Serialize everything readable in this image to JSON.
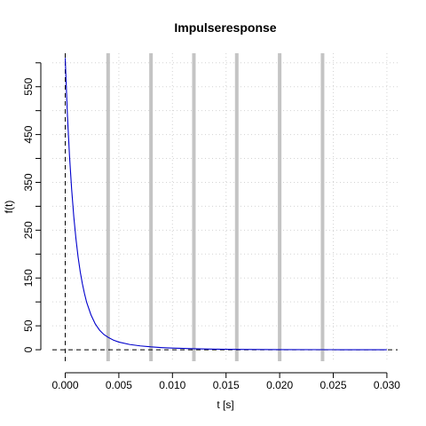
{
  "chart_data": {
    "type": "line",
    "title": "Impulseresponse",
    "xlabel": "t [s]",
    "ylabel": "f(t)",
    "xlim": [
      -0.0012,
      0.031
    ],
    "ylim": [
      -24,
      620
    ],
    "x_ticks": [
      0.0,
      0.005,
      0.01,
      0.015,
      0.02,
      0.025,
      0.03
    ],
    "x_tick_labels": [
      "0.000",
      "0.005",
      "0.010",
      "0.015",
      "0.020",
      "0.025",
      "0.030"
    ],
    "y_ticks_minor": [
      0,
      50,
      100,
      150,
      200,
      250,
      300,
      350,
      400,
      450,
      500,
      550,
      600
    ],
    "y_tick_labels": [
      {
        "value": 0,
        "label": "0"
      },
      {
        "value": 50,
        "label": "50"
      },
      {
        "value": 150,
        "label": "150"
      },
      {
        "value": 250,
        "label": "250"
      },
      {
        "value": 350,
        "label": "350"
      },
      {
        "value": 450,
        "label": "450"
      },
      {
        "value": 550,
        "label": "550"
      }
    ],
    "grid": true,
    "vertical_markers": [
      0.004,
      0.008,
      0.012,
      0.016,
      0.02,
      0.024
    ],
    "reference_lines": {
      "x": 0,
      "y": 0
    },
    "series": [
      {
        "color": "#0000cc",
        "x": [
          0.0,
          0.0002,
          0.0004,
          0.0006,
          0.0008,
          0.001,
          0.0012,
          0.0014,
          0.0016,
          0.0018,
          0.002,
          0.0024,
          0.0028,
          0.0032,
          0.0036,
          0.004,
          0.0045,
          0.005,
          0.006,
          0.007,
          0.008,
          0.009,
          0.01,
          0.011,
          0.012,
          0.013,
          0.014,
          0.016,
          0.018,
          0.02,
          0.025,
          0.03
        ],
        "values": [
          610,
          493,
          405,
          335,
          278,
          232,
          194,
          163,
          138,
          117,
          99,
          73,
          54,
          41,
          32,
          26,
          20,
          16,
          11,
          8,
          6,
          4.5,
          3.5,
          2.7,
          2.1,
          1.6,
          1.2,
          0.7,
          0.4,
          0.25,
          0.1,
          0.05
        ]
      }
    ]
  }
}
